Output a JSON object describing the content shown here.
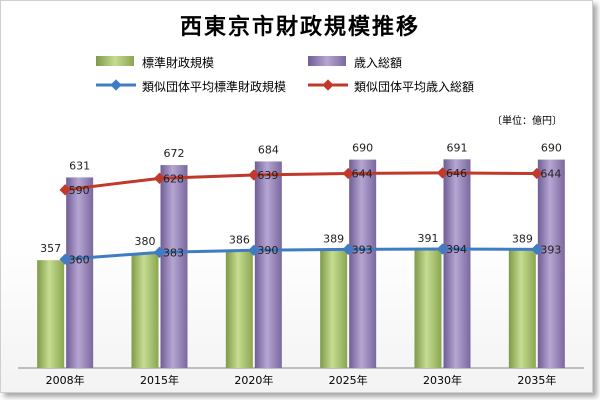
{
  "title": "西東京市財政規模推移",
  "unit_label": "〔単位：億円〕",
  "legend": {
    "bar1": "標準財政規模",
    "bar2": "歳入総額",
    "line1": "類似団体平均標準財政規模",
    "line2": "類似団体平均歳入総額"
  },
  "colors": {
    "bar1": "#a9c46e",
    "bar2": "#9a88b8",
    "line1": "#3f7cc4",
    "line2": "#c0392b"
  },
  "chart_data": {
    "type": "bar",
    "categories": [
      "2008年",
      "2015年",
      "2020年",
      "2025年",
      "2030年",
      "2035年"
    ],
    "series": [
      {
        "name": "標準財政規模",
        "type": "bar",
        "values": [
          357,
          380,
          386,
          389,
          391,
          389
        ]
      },
      {
        "name": "歳入総額",
        "type": "bar",
        "values": [
          631,
          672,
          684,
          690,
          691,
          690
        ]
      },
      {
        "name": "類似団体平均標準財政規模",
        "type": "line",
        "values": [
          360,
          383,
          390,
          393,
          394,
          393
        ]
      },
      {
        "name": "類似団体平均歳入総額",
        "type": "line",
        "values": [
          590,
          628,
          639,
          644,
          646,
          644
        ]
      }
    ],
    "ylim": [
      0,
      750
    ],
    "grid": false,
    "legend_position": "top"
  }
}
